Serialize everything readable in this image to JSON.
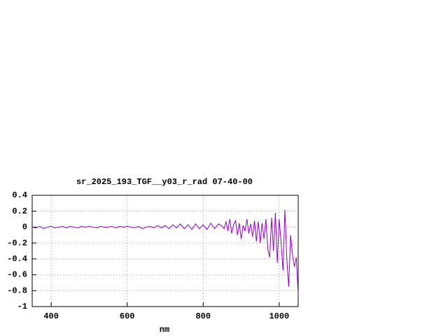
{
  "chart_data": {
    "type": "line",
    "title": "sr_2025_193_TGF__y03_r_rad 07-40-00",
    "x_label": "nm",
    "xlim": [
      350,
      1050
    ],
    "xticks": [
      400,
      600,
      800,
      1000
    ],
    "ylim": [
      -1,
      0.4
    ],
    "yticks": [
      0.4,
      0.2,
      0,
      -0.2,
      -0.4,
      -0.6,
      -0.8,
      -1
    ],
    "grid": true,
    "series": [
      {
        "color": "#9400d3",
        "x": [
          350,
          360,
          370,
          380,
          390,
          400,
          410,
          420,
          430,
          440,
          450,
          460,
          470,
          480,
          490,
          500,
          510,
          520,
          530,
          540,
          550,
          560,
          570,
          580,
          590,
          600,
          610,
          620,
          630,
          640,
          650,
          660,
          670,
          680,
          690,
          700,
          710,
          720,
          730,
          740,
          750,
          760,
          770,
          780,
          790,
          800,
          810,
          820,
          830,
          840,
          850,
          855,
          860,
          865,
          870,
          875,
          880,
          885,
          890,
          895,
          900,
          905,
          910,
          915,
          920,
          925,
          930,
          935,
          940,
          945,
          950,
          955,
          960,
          965,
          970,
          975,
          980,
          985,
          990,
          995,
          1000,
          1005,
          1010,
          1015,
          1020,
          1025,
          1030,
          1035,
          1040,
          1045,
          1050
        ],
        "values": [
          0.0,
          -0.01,
          0.01,
          -0.02,
          0.0,
          0.01,
          -0.01,
          0.0,
          0.01,
          -0.01,
          0.01,
          0.0,
          -0.01,
          0.01,
          0.0,
          0.01,
          0.0,
          -0.01,
          0.01,
          0.0,
          0.0,
          0.01,
          -0.01,
          0.01,
          0.0,
          0.01,
          0.0,
          -0.01,
          0.01,
          -0.02,
          0.0,
          0.01,
          -0.01,
          0.02,
          -0.01,
          0.02,
          -0.02,
          0.03,
          -0.01,
          0.04,
          -0.02,
          0.03,
          -0.03,
          0.04,
          -0.02,
          0.03,
          -0.03,
          0.05,
          -0.02,
          0.04,
          0.01,
          -0.02,
          0.07,
          -0.05,
          0.1,
          -0.08,
          0.03,
          0.08,
          -0.1,
          0.05,
          -0.15,
          0.02,
          -0.05,
          0.1,
          -0.08,
          0.04,
          -0.12,
          0.08,
          -0.18,
          0.07,
          -0.2,
          0.05,
          -0.15,
          0.1,
          -0.28,
          -0.38,
          0.12,
          -0.3,
          0.18,
          -0.45,
          0.1,
          -0.2,
          -0.55,
          0.22,
          -0.4,
          -0.75,
          -0.1,
          -0.35,
          -0.5,
          -0.38,
          -0.85
        ]
      }
    ]
  }
}
